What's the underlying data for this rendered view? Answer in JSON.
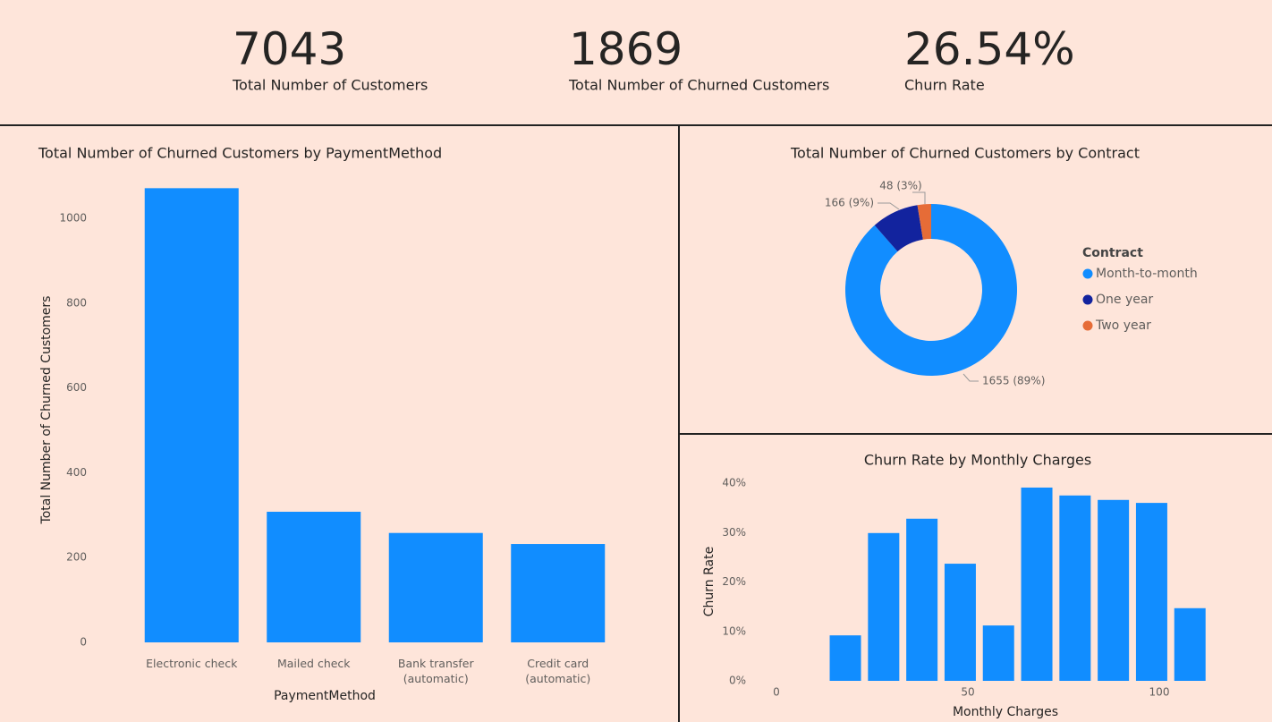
{
  "kpis": [
    {
      "value": "7043",
      "label": "Total Number of Customers"
    },
    {
      "value": "1869",
      "label": "Total Number of Churned Customers"
    },
    {
      "value": "26.54%",
      "label": "Churn Rate"
    }
  ],
  "chart_data": [
    {
      "type": "bar",
      "title": "Total Number of Churned Customers by PaymentMethod",
      "x_label": "PaymentMethod",
      "y_label": "Total Number of Churned Customers",
      "categories": [
        "Electronic check",
        "Mailed check",
        "Bank transfer (automatic)",
        "Credit card (automatic)"
      ],
      "values": [
        1071,
        308,
        258,
        232
      ],
      "color": "#118DFF",
      "ylim": [
        0,
        1100
      ],
      "yticks": [
        0,
        200,
        400,
        600,
        800,
        1000
      ]
    },
    {
      "type": "donut",
      "title": "Total Number of Churned Customers by Contract",
      "legend_title": "Contract",
      "categories": [
        "Month-to-month",
        "One year",
        "Two year"
      ],
      "values": [
        1655,
        166,
        48
      ],
      "value_labels": [
        "1655 (89%)",
        "166 (9%)",
        "48 (3%)"
      ],
      "colors": [
        "#118DFF",
        "#12239E",
        "#E66C37"
      ]
    },
    {
      "type": "column",
      "title": "Churn Rate by Monthly Charges",
      "x_label": "Monthly Charges",
      "y_label": "Churn Rate",
      "x": [
        18,
        28,
        38,
        48,
        58,
        68,
        78,
        88,
        98,
        108
      ],
      "values": [
        9.2,
        29.9,
        32.8,
        23.7,
        11.2,
        39.1,
        37.5,
        36.6,
        36.0,
        14.7
      ],
      "color": "#118DFF",
      "xlim": [
        0,
        115
      ],
      "xticks": [
        0,
        50,
        100
      ],
      "ylim": [
        0,
        41
      ],
      "yticks": [
        {
          "value": 0,
          "label": "0%"
        },
        {
          "value": 10,
          "label": "10%"
        },
        {
          "value": 20,
          "label": "20%"
        },
        {
          "value": 30,
          "label": "30%"
        },
        {
          "value": 40,
          "label": "40%"
        }
      ]
    }
  ]
}
